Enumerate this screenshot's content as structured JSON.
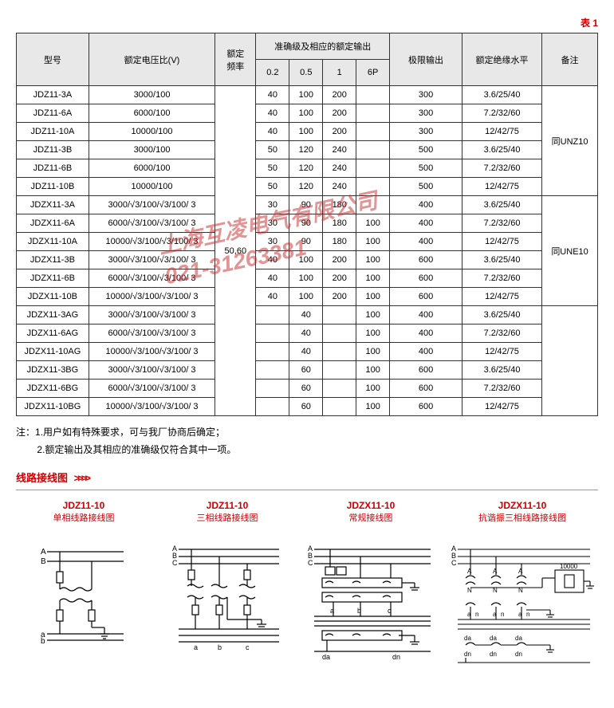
{
  "table_label": "表 1",
  "headers": {
    "model": "型号",
    "ratio": "额定电压比(V)",
    "freq": "额定\n频率",
    "acc": "准确级及相应的额定输出",
    "acc_cols": [
      "0.2",
      "0.5",
      "1",
      "6P"
    ],
    "limit": "极限输出",
    "insul": "额定绝缘水平",
    "remark": "备注"
  },
  "freq_val": "50,60",
  "groups": [
    {
      "remark": "同UNZ10",
      "rows": [
        {
          "model": "JDZ11-3A",
          "ratio": "3000/100",
          "a": [
            "40",
            "100",
            "200",
            ""
          ],
          "limit": "300",
          "insul": "3.6/25/40"
        },
        {
          "model": "JDZ11-6A",
          "ratio": "6000/100",
          "a": [
            "40",
            "100",
            "200",
            ""
          ],
          "limit": "300",
          "insul": "7.2/32/60"
        },
        {
          "model": "JDZ11-10A",
          "ratio": "10000/100",
          "a": [
            "40",
            "100",
            "200",
            ""
          ],
          "limit": "300",
          "insul": "12/42/75"
        },
        {
          "model": "JDZ11-3B",
          "ratio": "3000/100",
          "a": [
            "50",
            "120",
            "240",
            ""
          ],
          "limit": "500",
          "insul": "3.6/25/40"
        },
        {
          "model": "JDZ11-6B",
          "ratio": "6000/100",
          "a": [
            "50",
            "120",
            "240",
            ""
          ],
          "limit": "500",
          "insul": "7.2/32/60"
        },
        {
          "model": "JDZ11-10B",
          "ratio": "10000/100",
          "a": [
            "50",
            "120",
            "240",
            ""
          ],
          "limit": "500",
          "insul": "12/42/75"
        }
      ]
    },
    {
      "remark": "同UNE10",
      "rows": [
        {
          "model": "JDZX11-3A",
          "ratio": "3000/√3/100/√3/100/ 3",
          "a": [
            "30",
            "90",
            "180",
            ""
          ],
          "limit": "400",
          "insul": "3.6/25/40"
        },
        {
          "model": "JDZX11-6A",
          "ratio": "6000/√3/100/√3/100/ 3",
          "a": [
            "30",
            "90",
            "180",
            "100"
          ],
          "limit": "400",
          "insul": "7.2/32/60"
        },
        {
          "model": "JDZX11-10A",
          "ratio": "10000/√3/100/√3/100/ 3",
          "a": [
            "30",
            "90",
            "180",
            "100"
          ],
          "limit": "400",
          "insul": "12/42/75"
        },
        {
          "model": "JDZX11-3B",
          "ratio": "3000/√3/100/√3/100/ 3",
          "a": [
            "40",
            "100",
            "200",
            "100"
          ],
          "limit": "600",
          "insul": "3.6/25/40"
        },
        {
          "model": "JDZX11-6B",
          "ratio": "6000/√3/100/√3/100/ 3",
          "a": [
            "40",
            "100",
            "200",
            "100"
          ],
          "limit": "600",
          "insul": "7.2/32/60"
        },
        {
          "model": "JDZX11-10B",
          "ratio": "10000/√3/100/√3/100/ 3",
          "a": [
            "40",
            "100",
            "200",
            "100"
          ],
          "limit": "600",
          "insul": "12/42/75"
        }
      ]
    },
    {
      "remark": "",
      "rows": [
        {
          "model": "JDZX11-3AG",
          "ratio": "3000/√3/100/√3/100/ 3",
          "a": [
            "",
            "40",
            "",
            "100"
          ],
          "limit": "400",
          "insul": "3.6/25/40"
        },
        {
          "model": "JDZX11-6AG",
          "ratio": "6000/√3/100/√3/100/ 3",
          "a": [
            "",
            "40",
            "",
            "100"
          ],
          "limit": "400",
          "insul": "7.2/32/60"
        },
        {
          "model": "JDZX11-10AG",
          "ratio": "10000/√3/100/√3/100/ 3",
          "a": [
            "",
            "40",
            "",
            "100"
          ],
          "limit": "400",
          "insul": "12/42/75"
        },
        {
          "model": "JDZX11-3BG",
          "ratio": "3000/√3/100/√3/100/ 3",
          "a": [
            "",
            "60",
            "",
            "100"
          ],
          "limit": "600",
          "insul": "3.6/25/40"
        },
        {
          "model": "JDZX11-6BG",
          "ratio": "6000/√3/100/√3/100/ 3",
          "a": [
            "",
            "60",
            "",
            "100"
          ],
          "limit": "600",
          "insul": "7.2/32/60"
        },
        {
          "model": "JDZX11-10BG",
          "ratio": "10000/√3/100/√3/100/ 3",
          "a": [
            "",
            "60",
            "",
            "100"
          ],
          "limit": "600",
          "insul": "12/42/75"
        }
      ]
    }
  ],
  "notes": {
    "prefix": "注：",
    "n1": "1.用户如有特殊要求，可与我厂协商后确定；",
    "n2": "2.额定输出及其相应的准确级仅符合其中一项。"
  },
  "section": "线路接线图",
  "section_arrows": ">>>>",
  "diagrams": [
    {
      "t1": "JDZ11-10",
      "t2": "单相线路接线图"
    },
    {
      "t1": "JDZ11-10",
      "t2": "三相线路接线图"
    },
    {
      "t1": "JDZX11-10",
      "t2": "常规接线图"
    },
    {
      "t1": "JDZX11-10",
      "t2": "抗谐振三相线路接线图"
    }
  ],
  "watermark": {
    "line1": "上海互凌电气有限公司",
    "line2": "021-31263381"
  },
  "col_widths": [
    "78",
    "136",
    "44",
    "36",
    "36",
    "36",
    "36",
    "78",
    "86",
    "60"
  ]
}
